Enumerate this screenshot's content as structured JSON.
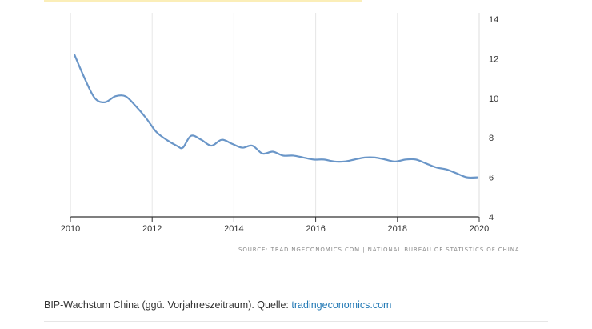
{
  "source_text": "SOURCE: TRADINGECONOMICS.COM | NATIONAL BUREAU OF STATISTICS OF CHINA",
  "caption": {
    "text": "BIP-Wachstum China (ggü. Vorjahreszeitraum). Quelle: ",
    "link_text": "tradingeconomics.com"
  },
  "colors": {
    "line": "#6a96c8",
    "grid": "#e6e6e6",
    "axis": "#333333",
    "link": "#1f77b4"
  },
  "chart_data": {
    "type": "line",
    "title": "",
    "xlabel": "",
    "ylabel": "",
    "xlim": [
      2010,
      2020
    ],
    "ylim": [
      4,
      14
    ],
    "x_ticks": [
      2010,
      2012,
      2014,
      2016,
      2018,
      2020
    ],
    "y_ticks": [
      4,
      6,
      8,
      10,
      12,
      14
    ],
    "y_axis_position": "right",
    "grid": "vertical",
    "series": [
      {
        "values": [
          [
            2010.1,
            12.2
          ],
          [
            2010.35,
            11.0
          ],
          [
            2010.6,
            10.0
          ],
          [
            2010.85,
            9.8
          ],
          [
            2011.1,
            10.1
          ],
          [
            2011.35,
            10.1
          ],
          [
            2011.6,
            9.6
          ],
          [
            2011.85,
            9.0
          ],
          [
            2012.1,
            8.3
          ],
          [
            2012.35,
            7.9
          ],
          [
            2012.6,
            7.6
          ],
          [
            2012.75,
            7.5
          ],
          [
            2012.95,
            8.1
          ],
          [
            2013.2,
            7.9
          ],
          [
            2013.45,
            7.6
          ],
          [
            2013.7,
            7.9
          ],
          [
            2013.95,
            7.7
          ],
          [
            2014.2,
            7.5
          ],
          [
            2014.45,
            7.6
          ],
          [
            2014.7,
            7.2
          ],
          [
            2014.95,
            7.3
          ],
          [
            2015.2,
            7.1
          ],
          [
            2015.45,
            7.1
          ],
          [
            2015.7,
            7.0
          ],
          [
            2015.95,
            6.9
          ],
          [
            2016.2,
            6.9
          ],
          [
            2016.45,
            6.8
          ],
          [
            2016.7,
            6.8
          ],
          [
            2016.95,
            6.9
          ],
          [
            2017.2,
            7.0
          ],
          [
            2017.45,
            7.0
          ],
          [
            2017.7,
            6.9
          ],
          [
            2017.95,
            6.8
          ],
          [
            2018.2,
            6.9
          ],
          [
            2018.45,
            6.9
          ],
          [
            2018.7,
            6.7
          ],
          [
            2018.95,
            6.5
          ],
          [
            2019.2,
            6.4
          ],
          [
            2019.45,
            6.2
          ],
          [
            2019.7,
            6.0
          ],
          [
            2019.95,
            6.0
          ]
        ]
      }
    ]
  }
}
